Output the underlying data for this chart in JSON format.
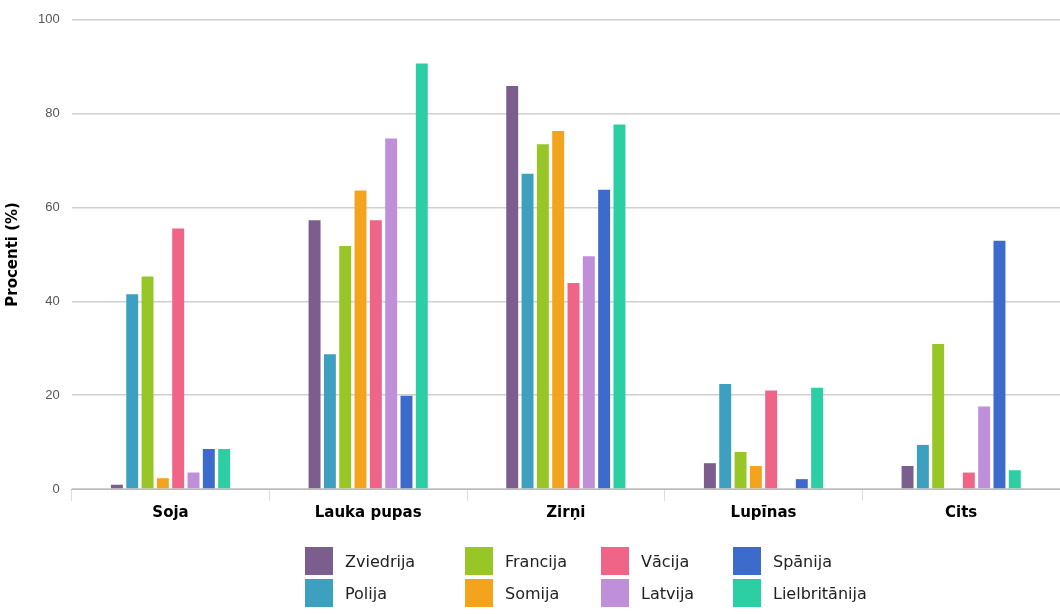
{
  "chart_data": {
    "type": "bar",
    "ylabel": "Procenti (%)",
    "categories": [
      "Soja",
      "Lauka pupas",
      "Zirņi",
      "Lupīnas",
      "Cits"
    ],
    "series": [
      {
        "name": "Zviedrija",
        "color": "#7b5e8d",
        "values": [
          0.9,
          57.3,
          85.9,
          5.5,
          4.9
        ]
      },
      {
        "name": "Polija",
        "color": "#3ea0c0",
        "values": [
          41.5,
          28.7,
          67.2,
          22.4,
          9.4
        ]
      },
      {
        "name": "Francija",
        "color": "#98c626",
        "values": [
          45.3,
          51.8,
          73.5,
          7.9,
          30.9
        ]
      },
      {
        "name": "Somija",
        "color": "#f4a31c",
        "values": [
          2.3,
          63.6,
          76.3,
          4.9,
          0
        ]
      },
      {
        "name": "Vācija",
        "color": "#f06487",
        "values": [
          55.5,
          57.3,
          43.9,
          21.0,
          3.5
        ]
      },
      {
        "name": "Latvija",
        "color": "#bf8fd9",
        "values": [
          3.5,
          74.7,
          49.6,
          0,
          17.6
        ]
      },
      {
        "name": "Spānija",
        "color": "#3d6bcc",
        "values": [
          8.5,
          19.9,
          63.8,
          2.1,
          52.9
        ]
      },
      {
        "name": "Lielbritānija",
        "color": "#2ccfa3",
        "values": [
          8.5,
          90.7,
          77.7,
          21.6,
          4.0
        ]
      }
    ],
    "ylim": [
      0,
      100
    ],
    "yticks": [
      0,
      20,
      40,
      60,
      80,
      100
    ],
    "grid": "y",
    "legend": "bottom"
  }
}
